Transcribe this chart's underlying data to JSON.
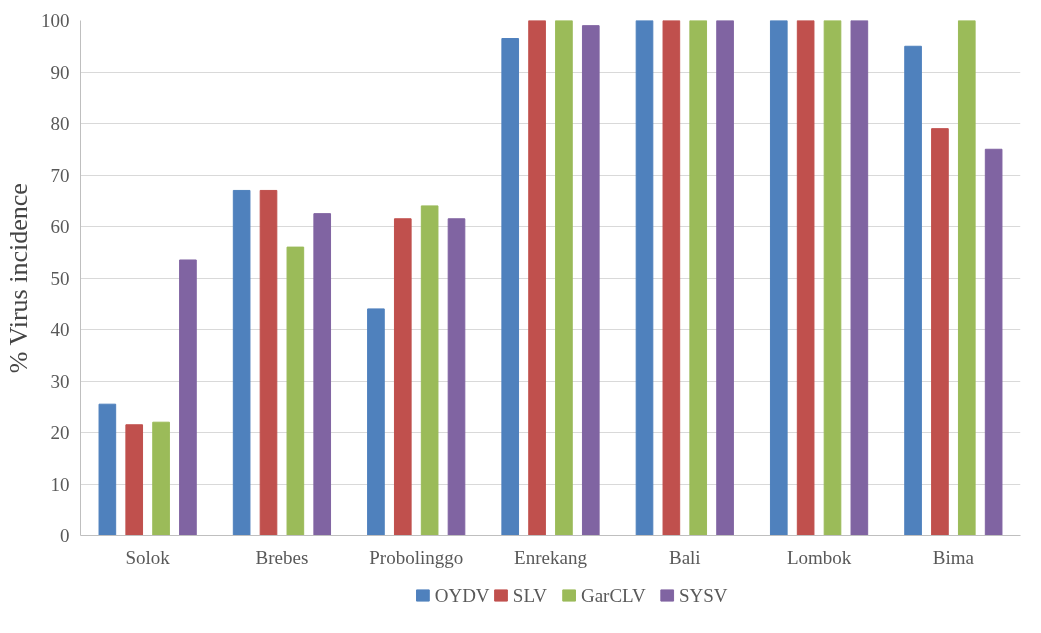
{
  "chart_data": {
    "type": "bar",
    "ylabel": "% Virus incidence",
    "categories": [
      "Solok",
      "Brebes",
      "Probolinggo",
      "Enrekang",
      "Bali",
      "Lombok",
      "Bima"
    ],
    "series": [
      {
        "name": "OYDV",
        "color": "#4f81bd",
        "values": [
          25.5,
          67,
          44,
          96.5,
          100,
          100,
          95
        ]
      },
      {
        "name": "SLV",
        "color": "#c0504d",
        "values": [
          21.5,
          67,
          61.5,
          100,
          100,
          100,
          79
        ]
      },
      {
        "name": "GarCLV",
        "color": "#9bbb59",
        "values": [
          22,
          56,
          64,
          100,
          100,
          100,
          100
        ]
      },
      {
        "name": "SYSV",
        "color": "#8064a2",
        "values": [
          53.5,
          62.5,
          61.5,
          99,
          100,
          100,
          75
        ]
      }
    ],
    "ylim": [
      0,
      100
    ],
    "yticks": [
      0,
      10,
      20,
      30,
      40,
      50,
      60,
      70,
      80,
      90,
      100
    ],
    "grid": "y",
    "legend": "bottom"
  }
}
